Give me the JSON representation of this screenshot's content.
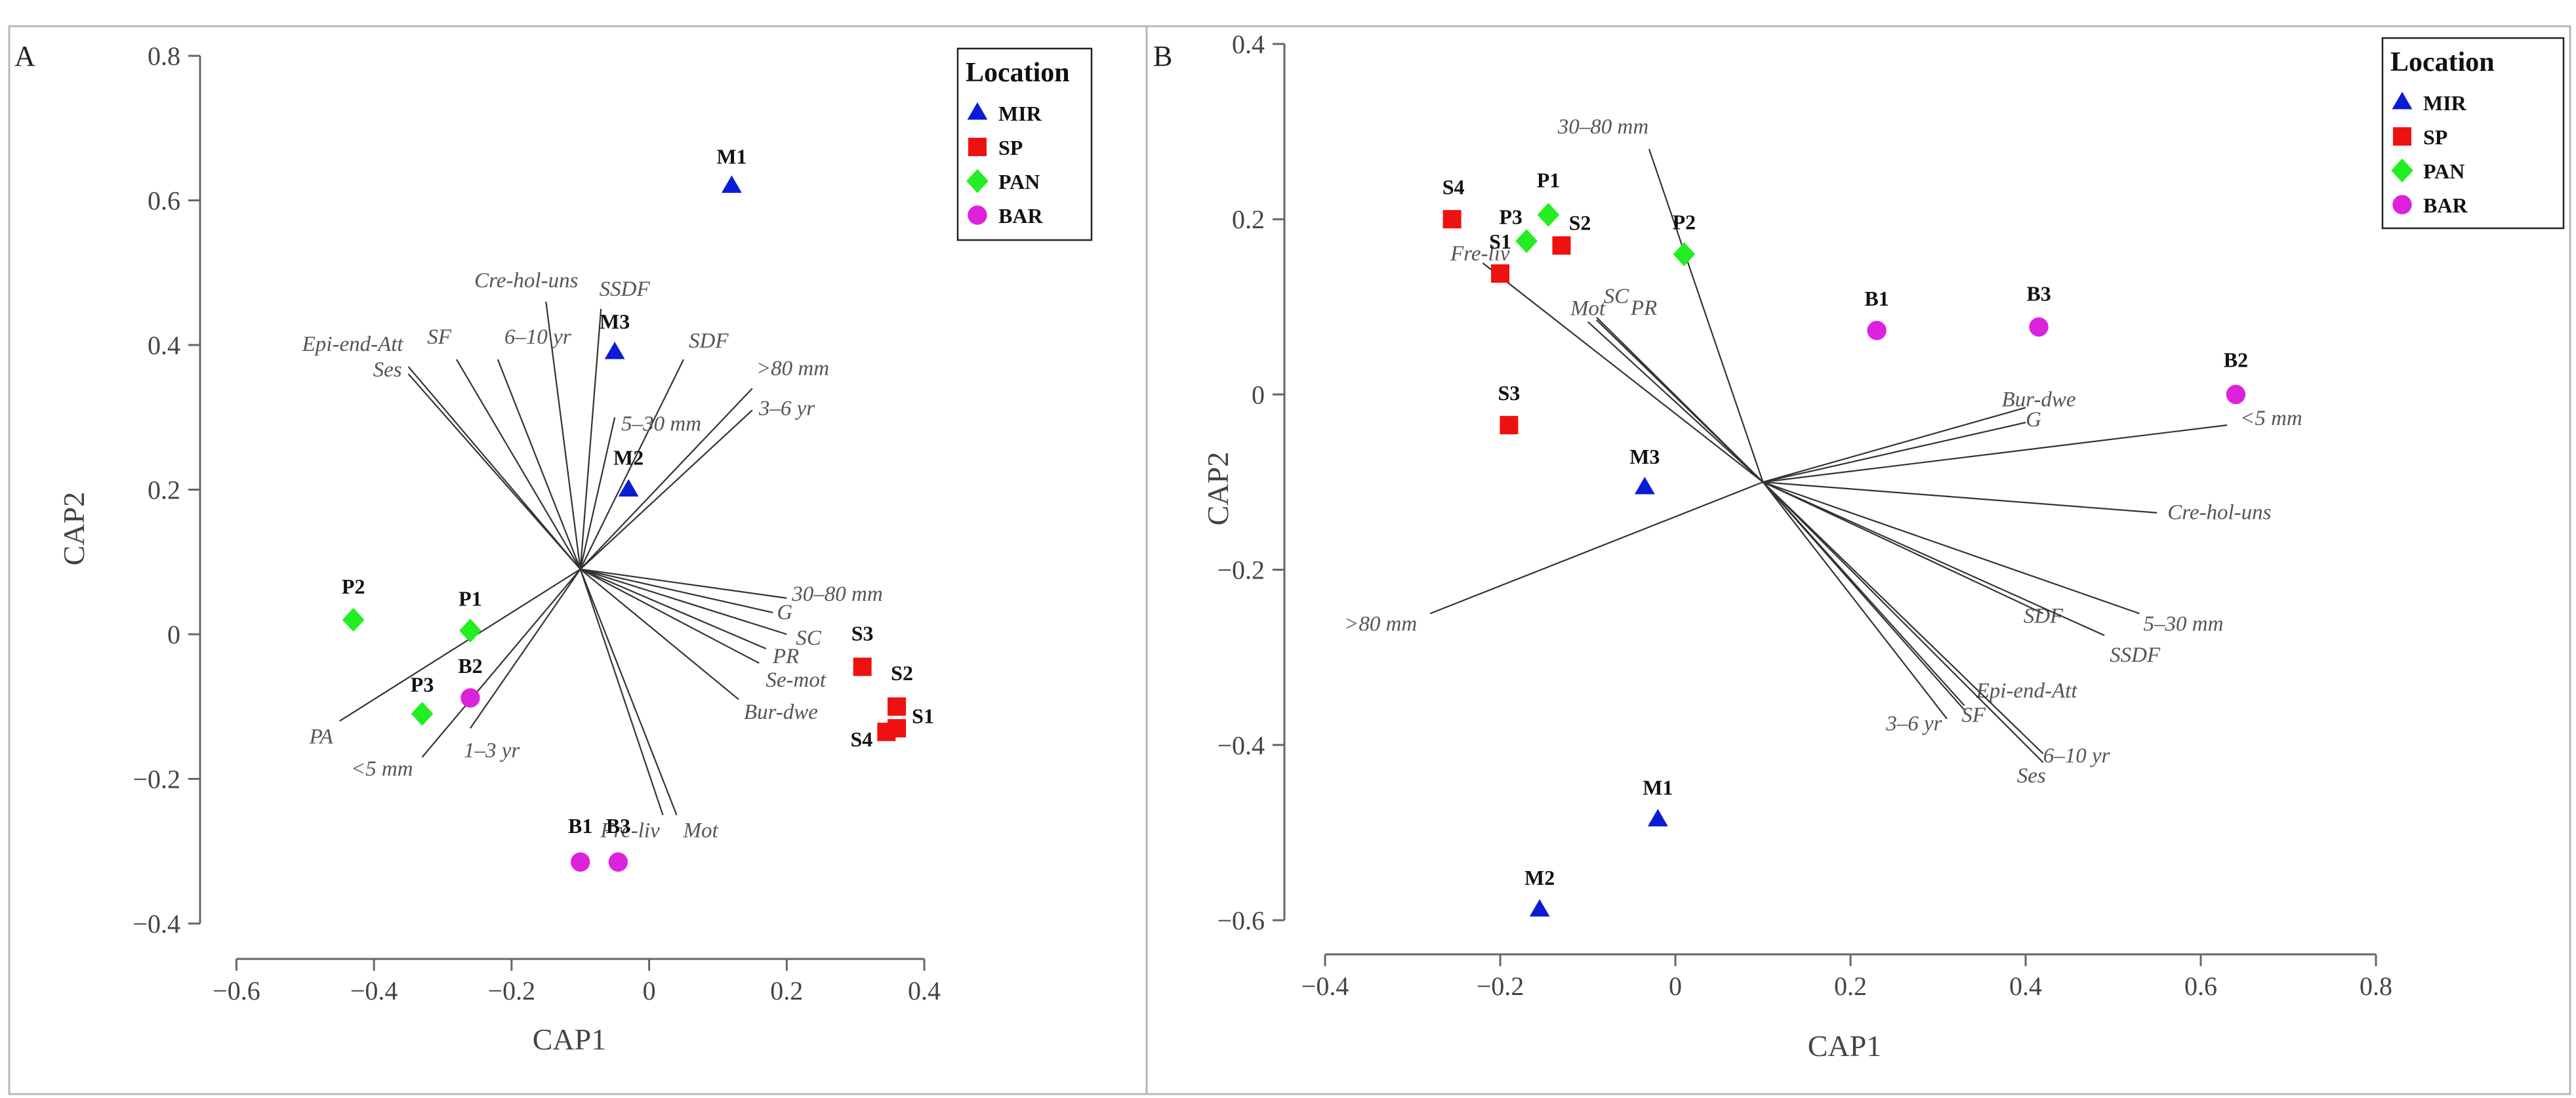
{
  "chart_data": [
    {
      "type": "scatter",
      "panel": "A",
      "xlabel": "CAP1",
      "ylabel": "CAP2",
      "xlim": [
        -0.65,
        0.42
      ],
      "ylim": [
        -0.42,
        0.83
      ],
      "xticks": [
        -0.6,
        -0.4,
        -0.2,
        0,
        0.2,
        0.4
      ],
      "yticks": [
        -0.4,
        -0.2,
        0,
        0.2,
        0.4,
        0.6,
        0.8
      ],
      "xtick_labels": [
        "−0.6",
        "−0.4",
        "−0.2",
        "0",
        "0.2",
        "0.4"
      ],
      "ytick_labels": [
        "−0.4",
        "−0.2",
        "0",
        "0.2",
        "0.4",
        "0.6",
        "0.8"
      ],
      "legend": {
        "title": "Location",
        "position": "top-right",
        "entries": [
          {
            "label": "MIR",
            "marker": "triangle",
            "color": "#0a1bd6"
          },
          {
            "label": "SP",
            "marker": "square",
            "color": "#ee1111"
          },
          {
            "label": "PAN",
            "marker": "diamond",
            "color": "#22ee22"
          },
          {
            "label": "BAR",
            "marker": "circle",
            "color": "#dd22dd"
          }
        ]
      },
      "points": [
        {
          "label": "M1",
          "group": "MIR",
          "x": 0.12,
          "y": 0.62
        },
        {
          "label": "M3",
          "group": "MIR",
          "x": -0.05,
          "y": 0.39
        },
        {
          "label": "M2",
          "group": "MIR",
          "x": -0.03,
          "y": 0.2
        },
        {
          "label": "S3",
          "group": "SP",
          "x": 0.31,
          "y": -0.045
        },
        {
          "label": "S2",
          "group": "SP",
          "x": 0.36,
          "y": -0.1
        },
        {
          "label": "S1",
          "group": "SP",
          "x": 0.36,
          "y": -0.13
        },
        {
          "label": "S4",
          "group": "SP",
          "x": 0.345,
          "y": -0.135
        },
        {
          "label": "P2",
          "group": "PAN",
          "x": -0.43,
          "y": 0.02
        },
        {
          "label": "P1",
          "group": "PAN",
          "x": -0.26,
          "y": 0.005
        },
        {
          "label": "P3",
          "group": "PAN",
          "x": -0.33,
          "y": -0.11
        },
        {
          "label": "B2",
          "group": "BAR",
          "x": -0.26,
          "y": -0.088
        },
        {
          "label": "B1",
          "group": "BAR",
          "x": -0.1,
          "y": -0.315
        },
        {
          "label": "B3",
          "group": "BAR",
          "x": -0.045,
          "y": -0.315
        }
      ],
      "vector_origin": {
        "x": -0.1,
        "y": 0.09
      },
      "vectors": [
        {
          "label": "Epi-end-Att",
          "x": -0.35,
          "y": 0.37
        },
        {
          "label": "Ses",
          "x": -0.35,
          "y": 0.36
        },
        {
          "label": "SF",
          "x": -0.28,
          "y": 0.38
        },
        {
          "label": "6–10 yr",
          "x": -0.22,
          "y": 0.38
        },
        {
          "label": "Cre-hol-uns",
          "x": -0.15,
          "y": 0.46
        },
        {
          "label": "SSDF",
          "x": -0.07,
          "y": 0.45
        },
        {
          "label": "SDF",
          "x": 0.05,
          "y": 0.38
        },
        {
          "label": ">80 mm",
          "x": 0.15,
          "y": 0.34
        },
        {
          "label": "5–30 mm",
          "x": -0.05,
          "y": 0.3
        },
        {
          "label": "3–6 yr",
          "x": 0.15,
          "y": 0.31
        },
        {
          "label": "30–80 mm",
          "x": 0.2,
          "y": 0.05
        },
        {
          "label": "G",
          "x": 0.18,
          "y": 0.03
        },
        {
          "label": "SC",
          "x": 0.2,
          "y": 0.0
        },
        {
          "label": "PR",
          "x": 0.17,
          "y": -0.02
        },
        {
          "label": "Se-mot",
          "x": 0.16,
          "y": -0.04
        },
        {
          "label": "Bur-dwe",
          "x": 0.13,
          "y": -0.09
        },
        {
          "label": "Fre-liv",
          "x": 0.02,
          "y": -0.25
        },
        {
          "label": "Mot",
          "x": 0.04,
          "y": -0.25
        },
        {
          "label": "PA",
          "x": -0.45,
          "y": -0.12
        },
        {
          "label": "<5 mm",
          "x": -0.33,
          "y": -0.17
        },
        {
          "label": "1–3 yr",
          "x": -0.26,
          "y": -0.13
        }
      ]
    },
    {
      "type": "scatter",
      "panel": "B",
      "xlabel": "CAP1",
      "ylabel": "CAP2",
      "xlim": [
        -0.43,
        0.8
      ],
      "ylim": [
        -0.615,
        0.4
      ],
      "xticks": [
        -0.4,
        -0.2,
        0,
        0.2,
        0.4,
        0.6,
        0.8
      ],
      "yticks": [
        -0.6,
        -0.4,
        -0.2,
        0,
        0.2,
        0.4
      ],
      "xtick_labels": [
        "−0.4",
        "−0.2",
        "0",
        "0.2",
        "0.4",
        "0.6",
        "0.8"
      ],
      "ytick_labels": [
        "−0.6",
        "−0.4",
        "−0.2",
        "0",
        "0.2",
        "0.4"
      ],
      "legend": {
        "title": "Location",
        "position": "top-right",
        "entries": [
          {
            "label": "MIR",
            "marker": "triangle",
            "color": "#0a1bd6"
          },
          {
            "label": "SP",
            "marker": "square",
            "color": "#ee1111"
          },
          {
            "label": "PAN",
            "marker": "diamond",
            "color": "#22ee22"
          },
          {
            "label": "BAR",
            "marker": "circle",
            "color": "#dd22dd"
          }
        ]
      },
      "points": [
        {
          "label": "S4",
          "group": "SP",
          "x": -0.255,
          "y": 0.2
        },
        {
          "label": "P1",
          "group": "PAN",
          "x": -0.145,
          "y": 0.205
        },
        {
          "label": "P3",
          "group": "PAN",
          "x": -0.17,
          "y": 0.175
        },
        {
          "label": "S2",
          "group": "SP",
          "x": -0.13,
          "y": 0.17
        },
        {
          "label": "P2",
          "group": "PAN",
          "x": 0.01,
          "y": 0.16
        },
        {
          "label": "S1",
          "group": "SP",
          "x": -0.2,
          "y": 0.138
        },
        {
          "label": "B1",
          "group": "BAR",
          "x": 0.23,
          "y": 0.073
        },
        {
          "label": "B3",
          "group": "BAR",
          "x": 0.415,
          "y": 0.077
        },
        {
          "label": "B2",
          "group": "BAR",
          "x": 0.64,
          "y": 0.0
        },
        {
          "label": "S3",
          "group": "SP",
          "x": -0.19,
          "y": -0.035
        },
        {
          "label": "M3",
          "group": "MIR",
          "x": -0.035,
          "y": -0.106
        },
        {
          "label": "M1",
          "group": "MIR",
          "x": -0.02,
          "y": -0.485
        },
        {
          "label": "M2",
          "group": "MIR",
          "x": -0.155,
          "y": -0.588
        }
      ],
      "vector_origin": {
        "x": 0.1,
        "y": -0.1
      },
      "vectors": [
        {
          "label": "30–80 mm",
          "x": -0.03,
          "y": 0.28
        },
        {
          "label": "Fre-liv",
          "x": -0.22,
          "y": 0.15
        },
        {
          "label": "SC",
          "x": -0.09,
          "y": 0.085
        },
        {
          "label": "Mot",
          "x": -0.1,
          "y": 0.083
        },
        {
          "label": "PR",
          "x": -0.09,
          "y": 0.088
        },
        {
          "label": "Bur-dwe",
          "x": 0.4,
          "y": -0.015
        },
        {
          "label": "G",
          "x": 0.4,
          "y": -0.032
        },
        {
          "label": "<5 mm",
          "x": 0.63,
          "y": -0.035
        },
        {
          "label": "Cre-hol-uns",
          "x": 0.55,
          "y": -0.135
        },
        {
          "label": "SDF",
          "x": 0.42,
          "y": -0.25
        },
        {
          "label": "5–30 mm",
          "x": 0.53,
          "y": -0.25
        },
        {
          "label": "SSDF",
          "x": 0.49,
          "y": -0.275
        },
        {
          "label": ">80 mm",
          "x": -0.28,
          "y": -0.25
        },
        {
          "label": "3–6 yr",
          "x": 0.31,
          "y": -0.37
        },
        {
          "label": "SF",
          "x": 0.33,
          "y": -0.36
        },
        {
          "label": "Epi-end-Att",
          "x": 0.33,
          "y": -0.355
        },
        {
          "label": "6–10 yr",
          "x": 0.42,
          "y": -0.42
        },
        {
          "label": "Ses",
          "x": 0.42,
          "y": -0.41
        }
      ]
    }
  ]
}
